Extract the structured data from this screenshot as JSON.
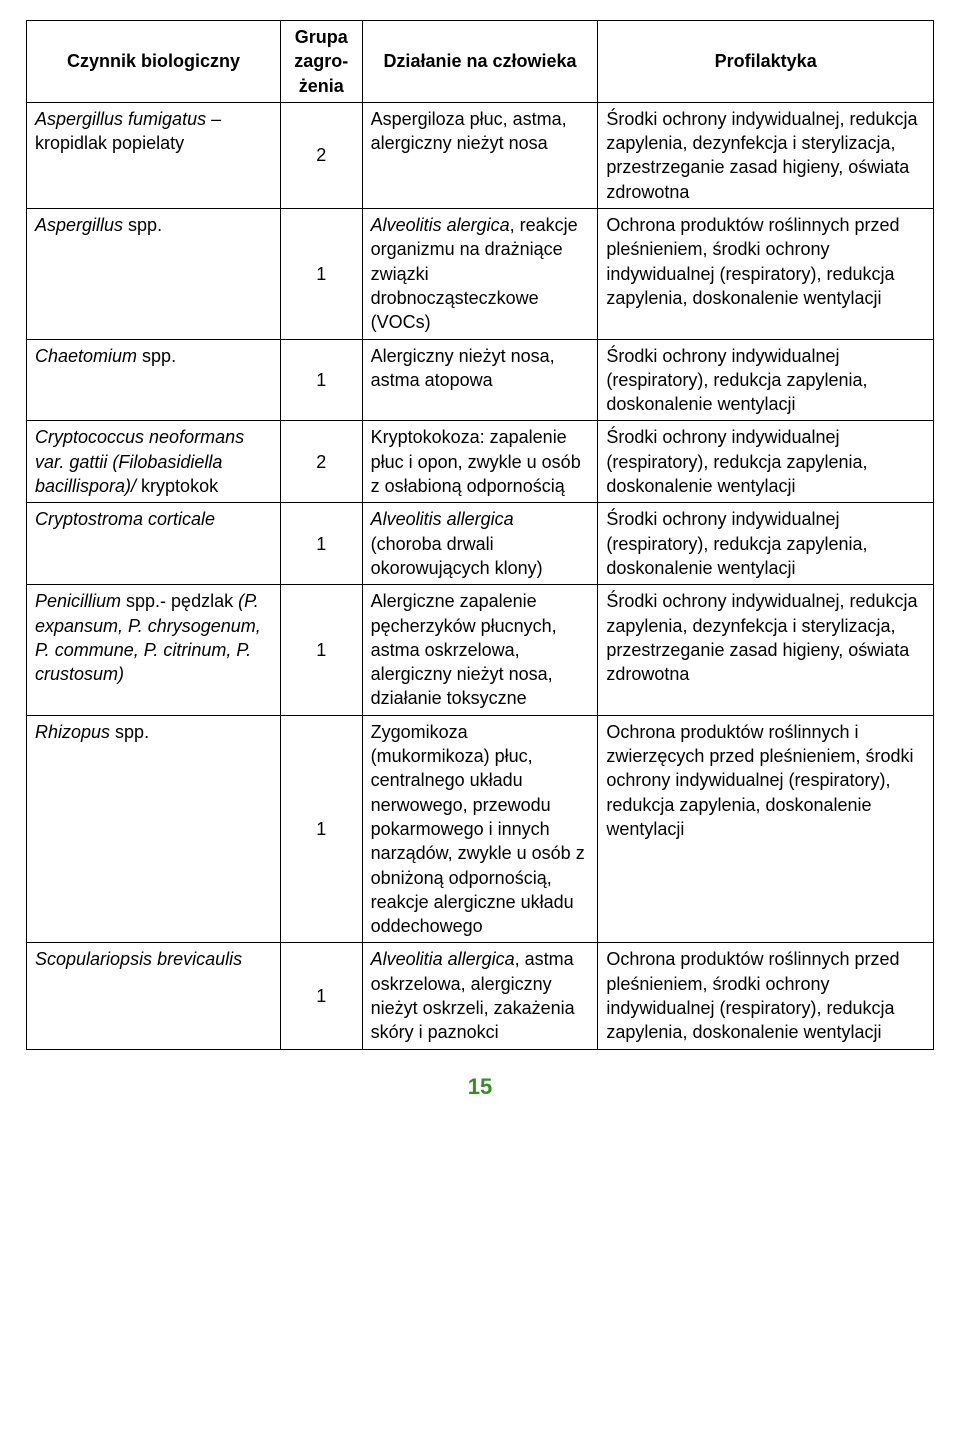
{
  "headers": {
    "agent": "Czynnik biologiczny",
    "group": "Grupa zagro-żenia",
    "effect": "Działanie na człowieka",
    "prophylaxis": "Profilaktyka"
  },
  "rows": [
    {
      "agent_html": "Aspergillus fumigatus – <span class=\"roman\">kropidlak popielaty</span>",
      "group": "2",
      "effect_html": "Aspergiloza płuc, astma, alergiczny nieżyt nosa",
      "prophylaxis_html": "Środki ochrony indywidualnej, redukcja zapylenia, dezynfekcja i sterylizacja, przestrzeganie zasad higieny, oświata zdrowotna"
    },
    {
      "agent_html": "Aspergillus <span class=\"roman\">spp.</span>",
      "group": "1",
      "effect_html": "<em>Alveolitis alergica</em>, reakcje organizmu na drażniące związki drobnocząsteczkowe (VOCs)",
      "prophylaxis_html": "Ochrona produktów roślinnych przed pleśnieniem, środki ochrony indywidualnej (respiratory), redukcja zapylenia, doskonalenie wentylacji"
    },
    {
      "agent_html": "Chaetomium <span class=\"roman\">spp.</span>",
      "group": "1",
      "effect_html": "Alergiczny nieżyt nosa, astma atopowa",
      "prophylaxis_html": "Środki ochrony indywidualnej (respiratory), redukcja zapylenia, doskonalenie wentylacji"
    },
    {
      "agent_html": "Cryptococcus neoformans var. gattii (Filobasidiella bacillispora)/ <span class=\"roman\">kryptokok</span>",
      "group": "2",
      "effect_html": "Kryptokokoza: zapalenie płuc i opon, zwykle u osób z osłabioną odpornością",
      "prophylaxis_html": "Środki ochrony indywidualnej (respiratory), redukcja zapylenia, doskonalenie wentylacji"
    },
    {
      "agent_html": "Cryptostroma corticale",
      "group": "1",
      "effect_html": "<em>Alveolitis allergica</em> (choroba drwali okorowujących klony)",
      "prophylaxis_html": "Środki ochrony indywidualnej (respiratory), redukcja zapylenia, doskonalenie wentylacji"
    },
    {
      "agent_html": "Penicillium <span class=\"roman\">spp.- pędzlak</span> (P. expansum, P. chrysogenum, P. commune, P. citrinum, P. crustosum)",
      "group": "1",
      "effect_html": "Alergiczne zapalenie pęcherzyków płucnych, astma oskrzelowa, alergiczny nieżyt nosa, działanie toksyczne",
      "prophylaxis_html": "Środki ochrony indywidualnej, redukcja zapylenia, dezynfekcja i sterylizacja, przestrzeganie zasad higieny, oświata zdrowotna"
    },
    {
      "agent_html": "Rhizopus <span class=\"roman\">spp.</span>",
      "group": "1",
      "effect_html": "Zygomikoza (mukormikoza) płuc, centralnego układu nerwowego, przewodu pokarmowego i innych narządów, zwykle u osób z obniżoną odpornością, reakcje alergiczne układu oddechowego",
      "prophylaxis_html": "Ochrona produktów roślinnych i zwierzęcych przed pleśnieniem, środki ochrony indywidualnej (respiratory), redukcja zapylenia, doskonalenie wentylacji"
    },
    {
      "agent_html": "Scopulariopsis brevicaulis",
      "group": "1",
      "effect_html": "<em>Alveolitia allergica</em>, astma oskrzelowa, alergiczny nieżyt oskrzeli, zakażenia skóry i paznokci",
      "prophylaxis_html": "Ochrona produktów roślinnych przed pleśnieniem, środki ochrony indywidualnej (respiratory), redukcja zapylenia, doskonalenie wentylacji"
    }
  ],
  "page_number": "15",
  "colors": {
    "border": "#000000",
    "text": "#000000",
    "page_number": "#3a8a2a",
    "background": "#ffffff"
  }
}
